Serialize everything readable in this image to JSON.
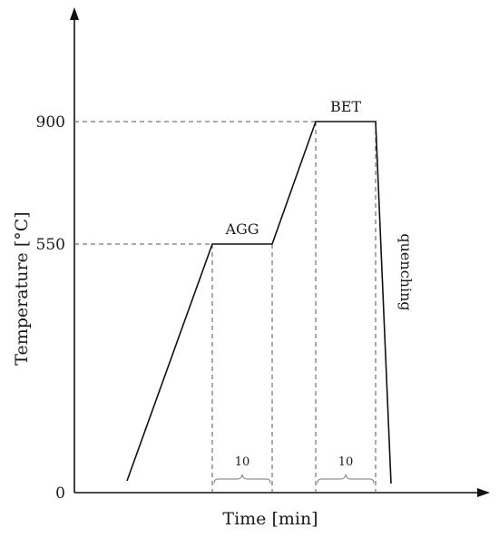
{
  "diagram": {
    "x_axis_title": "Time [min]",
    "y_axis_title": "Temperature [°C]",
    "y_ticks": [
      "900",
      "550",
      "0"
    ],
    "stages": {
      "agg": {
        "label": "AGG",
        "hold_duration": "10"
      },
      "bet": {
        "label": "BET",
        "hold_duration": "10"
      },
      "quench": {
        "label": "quenching"
      }
    }
  },
  "chart_data": {
    "type": "line",
    "xlabel": "Time [min]",
    "ylabel": "Temperature [°C]",
    "y_tick_values": [
      0,
      550,
      900
    ],
    "profile_temperatures": [
      0,
      550,
      550,
      900,
      900,
      0
    ],
    "hold_segments": [
      {
        "name": "AGG",
        "temperature": 550,
        "duration_min": 10
      },
      {
        "name": "BET",
        "temperature": 900,
        "duration_min": 10
      }
    ]
  }
}
